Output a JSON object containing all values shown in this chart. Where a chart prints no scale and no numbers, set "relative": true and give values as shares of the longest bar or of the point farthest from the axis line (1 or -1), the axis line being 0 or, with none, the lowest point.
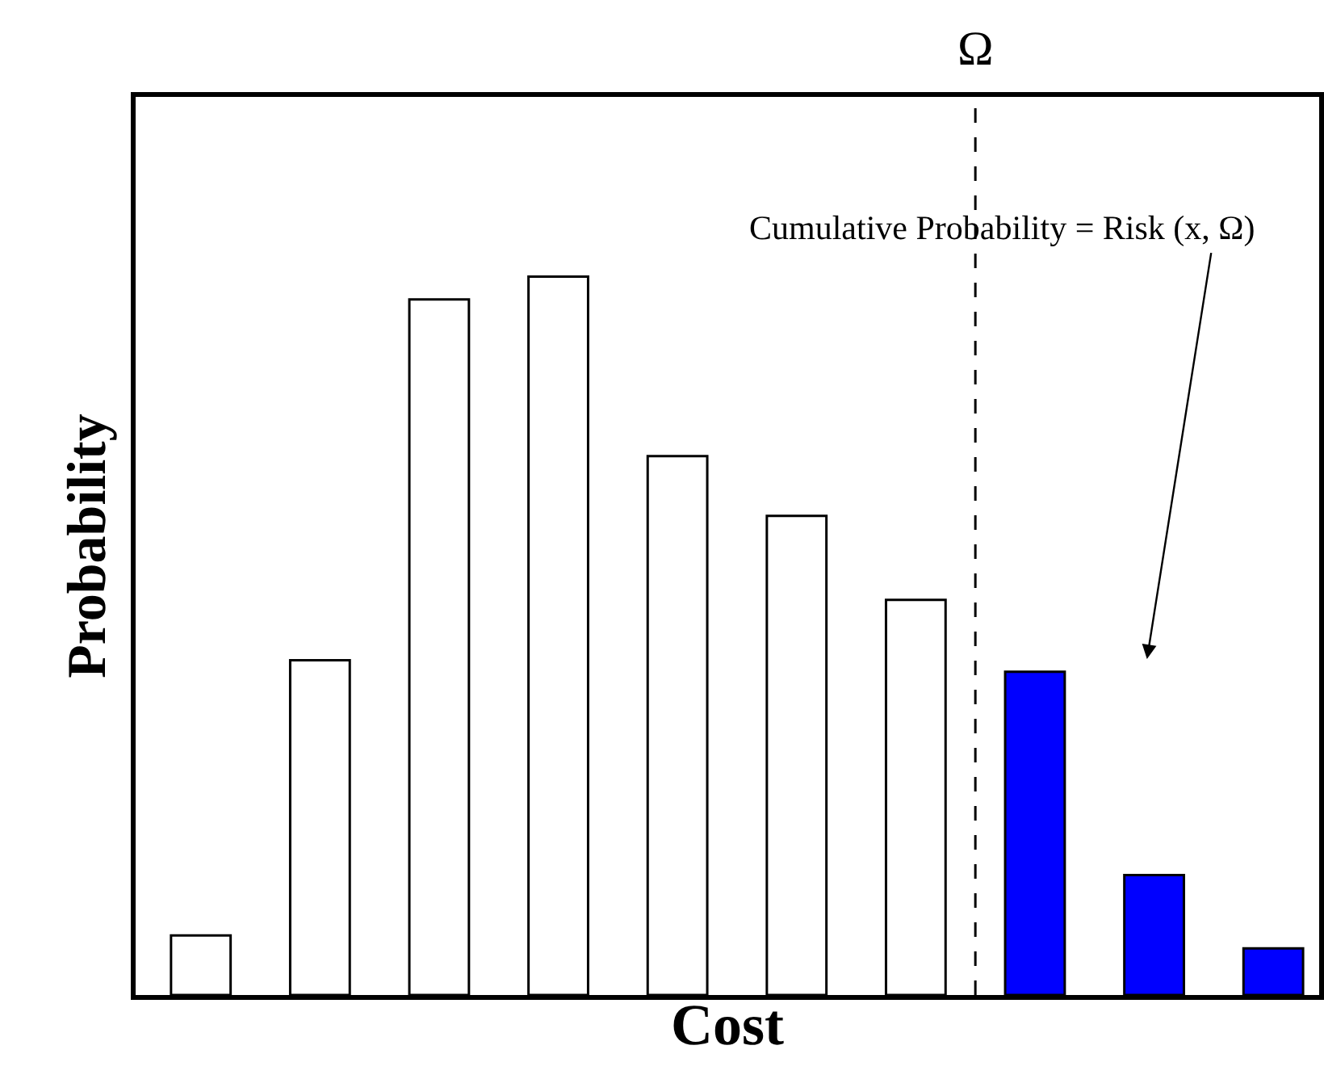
{
  "chart_data": {
    "type": "bar",
    "relative": true,
    "xlabel": "Cost",
    "ylabel": "Probability",
    "categories": [
      null,
      null,
      null,
      null,
      null,
      null,
      null,
      null,
      null,
      null
    ],
    "values": [
      0.083,
      0.466,
      0.968,
      1,
      0.75,
      0.667,
      0.55,
      0.45,
      0.167,
      0.065
    ],
    "colors": [
      "#ffffff",
      "#ffffff",
      "#ffffff",
      "#ffffff",
      "#ffffff",
      "#ffffff",
      "#ffffff",
      "#0000ff",
      "#0000ff",
      "#0000ff"
    ],
    "annotations": [
      "Ω",
      "Cumulative Probability = Risk (x, Ω)"
    ]
  }
}
